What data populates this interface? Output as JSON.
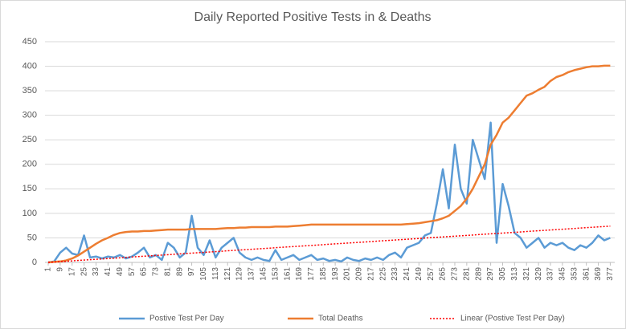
{
  "chart_data": {
    "type": "line",
    "title": "Daily Reported Positive Tests in & Deaths",
    "x": [
      1,
      5,
      9,
      13,
      17,
      21,
      25,
      29,
      33,
      37,
      41,
      45,
      49,
      53,
      57,
      61,
      65,
      69,
      73,
      77,
      81,
      85,
      89,
      93,
      97,
      101,
      105,
      109,
      113,
      117,
      121,
      125,
      129,
      133,
      137,
      141,
      145,
      149,
      153,
      157,
      161,
      165,
      169,
      173,
      177,
      181,
      185,
      189,
      193,
      197,
      201,
      205,
      209,
      213,
      217,
      221,
      225,
      229,
      233,
      237,
      241,
      245,
      249,
      253,
      257,
      261,
      265,
      269,
      273,
      277,
      281,
      285,
      289,
      293,
      297,
      301,
      305,
      309,
      313,
      317,
      321,
      325,
      329,
      333,
      337,
      341,
      345,
      349,
      353,
      357,
      361,
      365,
      369,
      373,
      377
    ],
    "series": [
      {
        "name": "Postive Test Per Day",
        "color": "#5b9bd5",
        "style": "solid",
        "values": [
          0,
          2,
          20,
          30,
          18,
          15,
          55,
          10,
          12,
          8,
          12,
          10,
          15,
          8,
          12,
          20,
          30,
          10,
          15,
          5,
          40,
          30,
          10,
          20,
          95,
          30,
          15,
          45,
          10,
          30,
          40,
          50,
          20,
          10,
          5,
          10,
          5,
          3,
          25,
          5,
          10,
          15,
          5,
          10,
          15,
          5,
          8,
          3,
          5,
          2,
          10,
          5,
          3,
          8,
          5,
          10,
          5,
          15,
          20,
          10,
          30,
          35,
          40,
          55,
          60,
          120,
          190,
          110,
          240,
          150,
          120,
          250,
          210,
          170,
          285,
          40,
          160,
          115,
          60,
          50,
          30,
          40,
          50,
          30,
          40,
          35,
          40,
          30,
          25,
          35,
          30,
          40,
          55,
          45,
          50
        ]
      },
      {
        "name": "Total Deaths",
        "color": "#ed7d31",
        "style": "solid",
        "values": [
          0,
          1,
          2,
          4,
          8,
          14,
          22,
          30,
          38,
          45,
          50,
          56,
          60,
          62,
          63,
          63,
          64,
          64,
          65,
          66,
          67,
          67,
          67,
          67,
          68,
          68,
          68,
          68,
          68,
          69,
          70,
          70,
          71,
          71,
          72,
          72,
          72,
          72,
          73,
          73,
          73,
          74,
          75,
          76,
          77,
          77,
          77,
          77,
          77,
          77,
          77,
          77,
          77,
          77,
          77,
          77,
          77,
          77,
          77,
          77,
          78,
          79,
          80,
          82,
          84,
          86,
          90,
          95,
          105,
          115,
          130,
          150,
          175,
          200,
          240,
          260,
          285,
          295,
          310,
          325,
          340,
          345,
          352,
          358,
          370,
          378,
          382,
          388,
          392,
          395,
          398,
          400,
          400,
          401,
          401
        ]
      },
      {
        "name": "Linear (Postive Test Per Day)",
        "color": "#ff0000",
        "style": "dotted",
        "x": [
          1,
          377
        ],
        "values": [
          0,
          74
        ]
      }
    ],
    "xlim": [
      1,
      380
    ],
    "xticks": [
      1,
      9,
      17,
      25,
      33,
      41,
      49,
      57,
      65,
      73,
      81,
      89,
      97,
      105,
      113,
      121,
      129,
      137,
      145,
      153,
      161,
      169,
      177,
      185,
      193,
      201,
      209,
      217,
      225,
      233,
      241,
      249,
      257,
      265,
      273,
      281,
      289,
      297,
      305,
      313,
      321,
      329,
      337,
      345,
      353,
      361,
      369,
      377
    ],
    "ylim": [
      0,
      450
    ],
    "yticks": [
      0,
      50,
      100,
      150,
      200,
      250,
      300,
      350,
      400,
      450
    ],
    "grid": true,
    "legend": "bottom"
  }
}
